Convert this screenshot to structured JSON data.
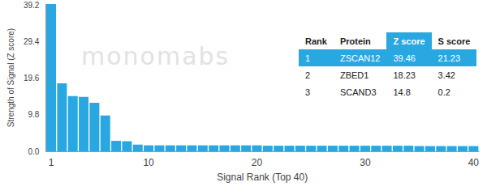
{
  "chart_data": {
    "type": "bar",
    "x_label": "Signal Rank (Top 40)",
    "y_label": "Strength of Signal (Z score)",
    "categories": [
      1,
      null,
      null,
      null,
      null,
      null,
      null,
      null,
      null,
      10,
      null,
      null,
      null,
      null,
      null,
      null,
      null,
      null,
      null,
      20,
      null,
      null,
      null,
      null,
      null,
      null,
      null,
      null,
      null,
      30,
      null,
      null,
      null,
      null,
      null,
      null,
      null,
      null,
      null,
      40
    ],
    "values": [
      39.46,
      18.23,
      14.8,
      14.6,
      13.0,
      9.6,
      2.8,
      2.7,
      1.8,
      1.6,
      1.6,
      1.6,
      1.6,
      1.6,
      1.6,
      1.6,
      1.6,
      1.6,
      1.6,
      1.6,
      1.5,
      1.5,
      1.5,
      1.5,
      1.5,
      1.5,
      1.5,
      1.5,
      1.5,
      1.5,
      1.5,
      1.5,
      1.5,
      1.5,
      1.4,
      1.4,
      1.4,
      1.4,
      1.4,
      1.4
    ],
    "color": "#29a7e1",
    "ylim": [
      0,
      39.46
    ],
    "yticks": [
      {
        "value": 0,
        "label": "0.0"
      },
      9.8,
      19.6,
      29.4,
      39.2
    ],
    "grid": false
  },
  "watermark": "monomabs",
  "table": {
    "columns": [
      "Rank",
      "Protein",
      "Z score",
      "S score"
    ],
    "rows": [
      [
        "1",
        "ZSCAN12",
        "39.46",
        "21.23"
      ],
      [
        "2",
        "ZBED1",
        "18.23",
        "3.42"
      ],
      [
        "3",
        "SCAND3",
        "14.8",
        "0.2"
      ]
    ]
  }
}
